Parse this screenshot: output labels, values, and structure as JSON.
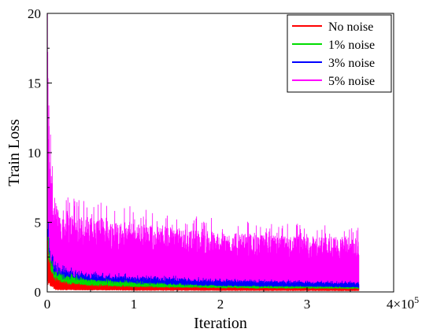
{
  "chart_data": {
    "type": "line",
    "xlabel": "Iteration",
    "ylabel": "Train Loss",
    "x_multiplier_label": "4×10",
    "x_multiplier_exponent": "5",
    "xlim": [
      0,
      400000
    ],
    "ylim": [
      0,
      20
    ],
    "x_ticks": [
      {
        "value": 0,
        "label": "0"
      },
      {
        "value": 100000,
        "label": "1"
      },
      {
        "value": 200000,
        "label": "2"
      },
      {
        "value": 300000,
        "label": "3"
      }
    ],
    "y_ticks": [
      {
        "value": 0,
        "label": "0"
      },
      {
        "value": 5,
        "label": "5"
      },
      {
        "value": 10,
        "label": "10"
      },
      {
        "value": 15,
        "label": "15"
      },
      {
        "value": 20,
        "label": "20"
      }
    ],
    "x_max_data": 360000,
    "legend_position": "top-right",
    "grid": false,
    "series": [
      {
        "name": "5% noise",
        "color": "#ff00ff",
        "upper": [
          [
            0,
            20
          ],
          [
            3000,
            11
          ],
          [
            8000,
            6.5
          ],
          [
            20000,
            5.8
          ],
          [
            50000,
            5.4
          ],
          [
            100000,
            5.0
          ],
          [
            150000,
            4.6
          ],
          [
            200000,
            4.3
          ],
          [
            250000,
            4.1
          ],
          [
            300000,
            4.0
          ],
          [
            360000,
            4.0
          ]
        ],
        "lower": [
          [
            0,
            2
          ],
          [
            10000,
            0.5
          ],
          [
            50000,
            0.4
          ],
          [
            360000,
            0.3
          ]
        ]
      },
      {
        "name": "3% noise",
        "color": "#0000ff",
        "upper": [
          [
            0,
            5.5
          ],
          [
            3000,
            3.0
          ],
          [
            8000,
            2.0
          ],
          [
            20000,
            1.6
          ],
          [
            50000,
            1.3
          ],
          [
            100000,
            1.1
          ],
          [
            150000,
            1.0
          ],
          [
            200000,
            0.85
          ],
          [
            250000,
            0.8
          ],
          [
            300000,
            0.75
          ],
          [
            360000,
            0.7
          ]
        ],
        "lower": [
          [
            0,
            1.5
          ],
          [
            10000,
            0.45
          ],
          [
            100000,
            0.35
          ],
          [
            360000,
            0.3
          ]
        ]
      },
      {
        "name": "1% noise",
        "color": "#00dd00",
        "upper": [
          [
            0,
            5.0
          ],
          [
            3000,
            2.6
          ],
          [
            8000,
            1.6
          ],
          [
            20000,
            1.2
          ],
          [
            50000,
            0.9
          ],
          [
            100000,
            0.7
          ],
          [
            150000,
            0.55
          ],
          [
            200000,
            0.45
          ],
          [
            300000,
            0.4
          ],
          [
            360000,
            0.35
          ]
        ],
        "lower": [
          [
            0,
            1.2
          ],
          [
            10000,
            0.35
          ],
          [
            100000,
            0.25
          ],
          [
            360000,
            0.2
          ]
        ]
      },
      {
        "name": "No noise",
        "color": "#ff0000",
        "upper": [
          [
            0,
            4.5
          ],
          [
            3000,
            2.0
          ],
          [
            8000,
            1.0
          ],
          [
            20000,
            0.7
          ],
          [
            50000,
            0.5
          ],
          [
            100000,
            0.4
          ],
          [
            150000,
            0.35
          ],
          [
            200000,
            0.3
          ],
          [
            360000,
            0.25
          ]
        ],
        "lower": [
          [
            0,
            0.9
          ],
          [
            10000,
            0.2
          ],
          [
            100000,
            0.15
          ],
          [
            360000,
            0.1
          ]
        ]
      }
    ]
  }
}
